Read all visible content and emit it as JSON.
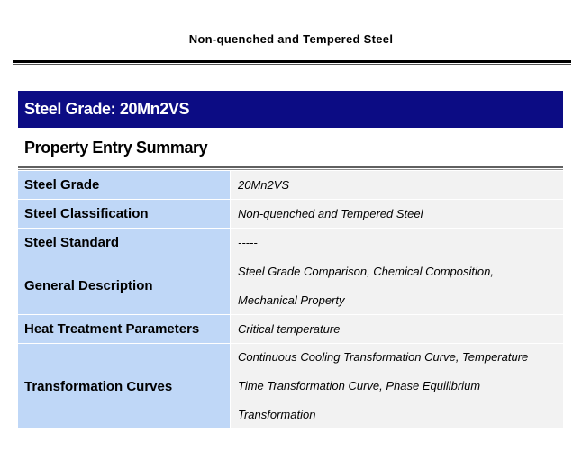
{
  "header": {
    "title": "Non-quenched and Tempered Steel"
  },
  "banner": {
    "text": "Steel Grade: 20Mn2VS"
  },
  "section": {
    "title": "Property Entry Summary"
  },
  "colors": {
    "banner_bg": "#0c0c84",
    "label_bg": "#bfd7f7",
    "value_bg": "#f2f2f2"
  },
  "table": {
    "rows": [
      {
        "label": "Steel Grade",
        "value": "20Mn2VS"
      },
      {
        "label": "Steel Classification",
        "value": "Non-quenched and Tempered Steel"
      },
      {
        "label": "Steel Standard",
        "value": "-----"
      },
      {
        "label": "General Description",
        "value": "Steel Grade Comparison, Chemical Composition, Mechanical Property"
      },
      {
        "label": "Heat Treatment Parameters",
        "value": "Critical temperature"
      },
      {
        "label": "Transformation Curves",
        "value": "Continuous Cooling Transformation Curve, Temperature Time Transformation Curve, Phase Equilibrium Transformation"
      }
    ]
  }
}
